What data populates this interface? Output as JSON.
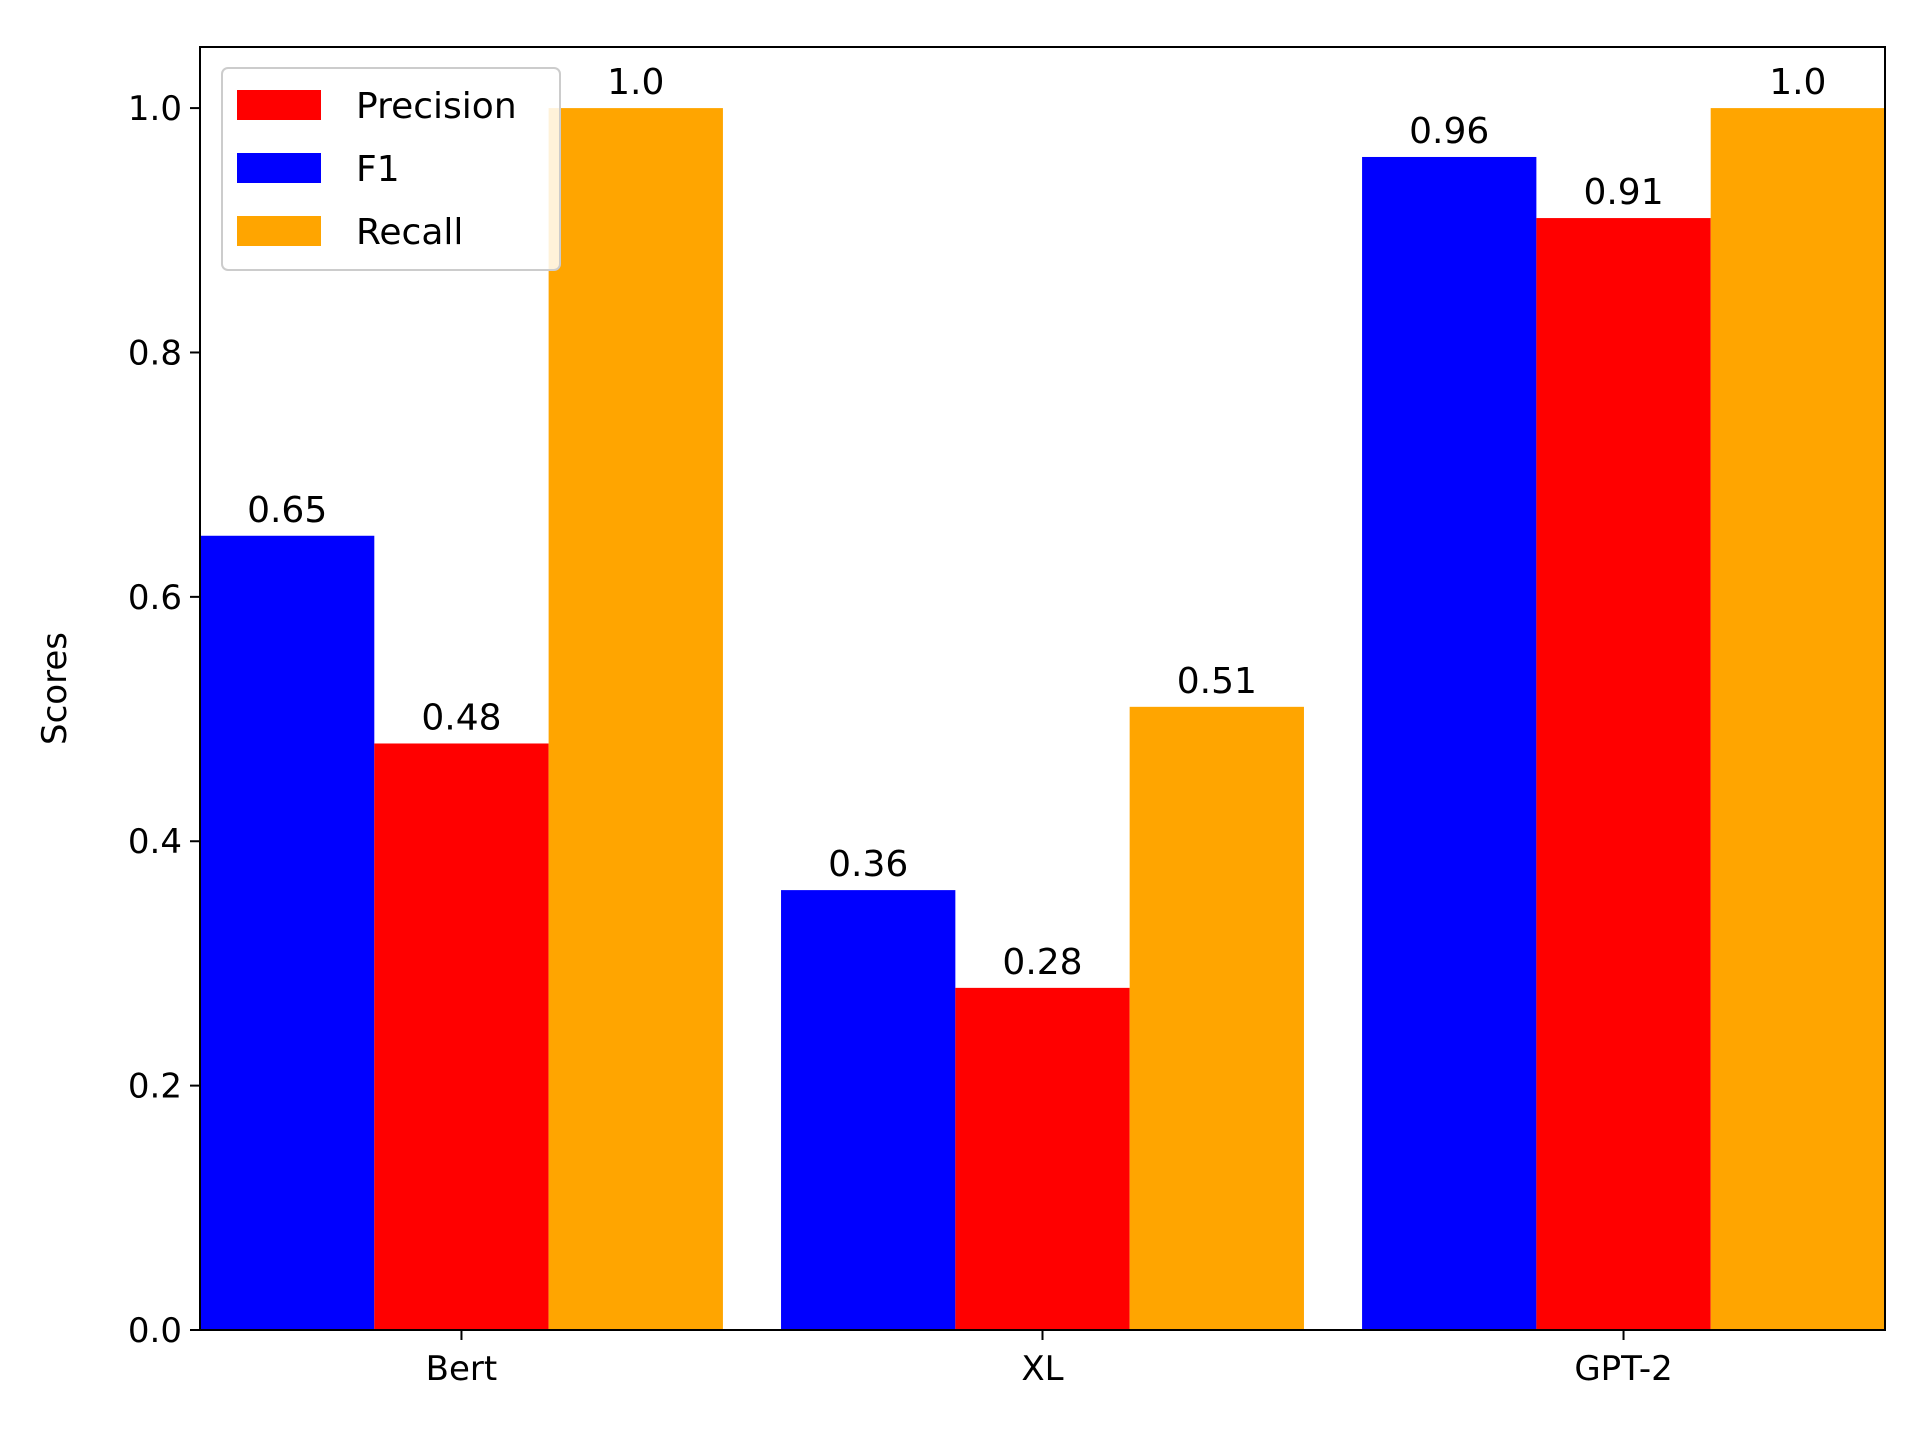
{
  "chart_data": {
    "type": "bar",
    "title": "",
    "xlabel": "",
    "ylabel": "Scores",
    "categories": [
      "Bert",
      "XL",
      "GPT-2"
    ],
    "ylim": [
      0,
      1.05
    ],
    "yticks": [
      0.0,
      0.2,
      0.4,
      0.6,
      0.8,
      1.0
    ],
    "ytick_labels": [
      "0.0",
      "0.2",
      "0.4",
      "0.6",
      "0.8",
      "1.0"
    ],
    "grid": false,
    "legend_position": "top-left",
    "legend": [
      {
        "name": "Precision",
        "color": "#ff0000"
      },
      {
        "name": "F1",
        "color": "#0000ff"
      },
      {
        "name": "Recall",
        "color": "#ffa500"
      }
    ],
    "series": [
      {
        "name": "F1",
        "color": "#0000ff",
        "values": [
          0.65,
          0.36,
          0.96
        ],
        "labels": [
          "0.65",
          "0.36",
          "0.96"
        ]
      },
      {
        "name": "Precision",
        "color": "#ff0000",
        "values": [
          0.48,
          0.28,
          0.91
        ],
        "labels": [
          "0.48",
          "0.28",
          "0.91"
        ]
      },
      {
        "name": "Recall",
        "color": "#ffa500",
        "values": [
          1.0,
          0.51,
          1.0
        ],
        "labels": [
          "1.0",
          "0.51",
          "1.0"
        ]
      }
    ]
  }
}
